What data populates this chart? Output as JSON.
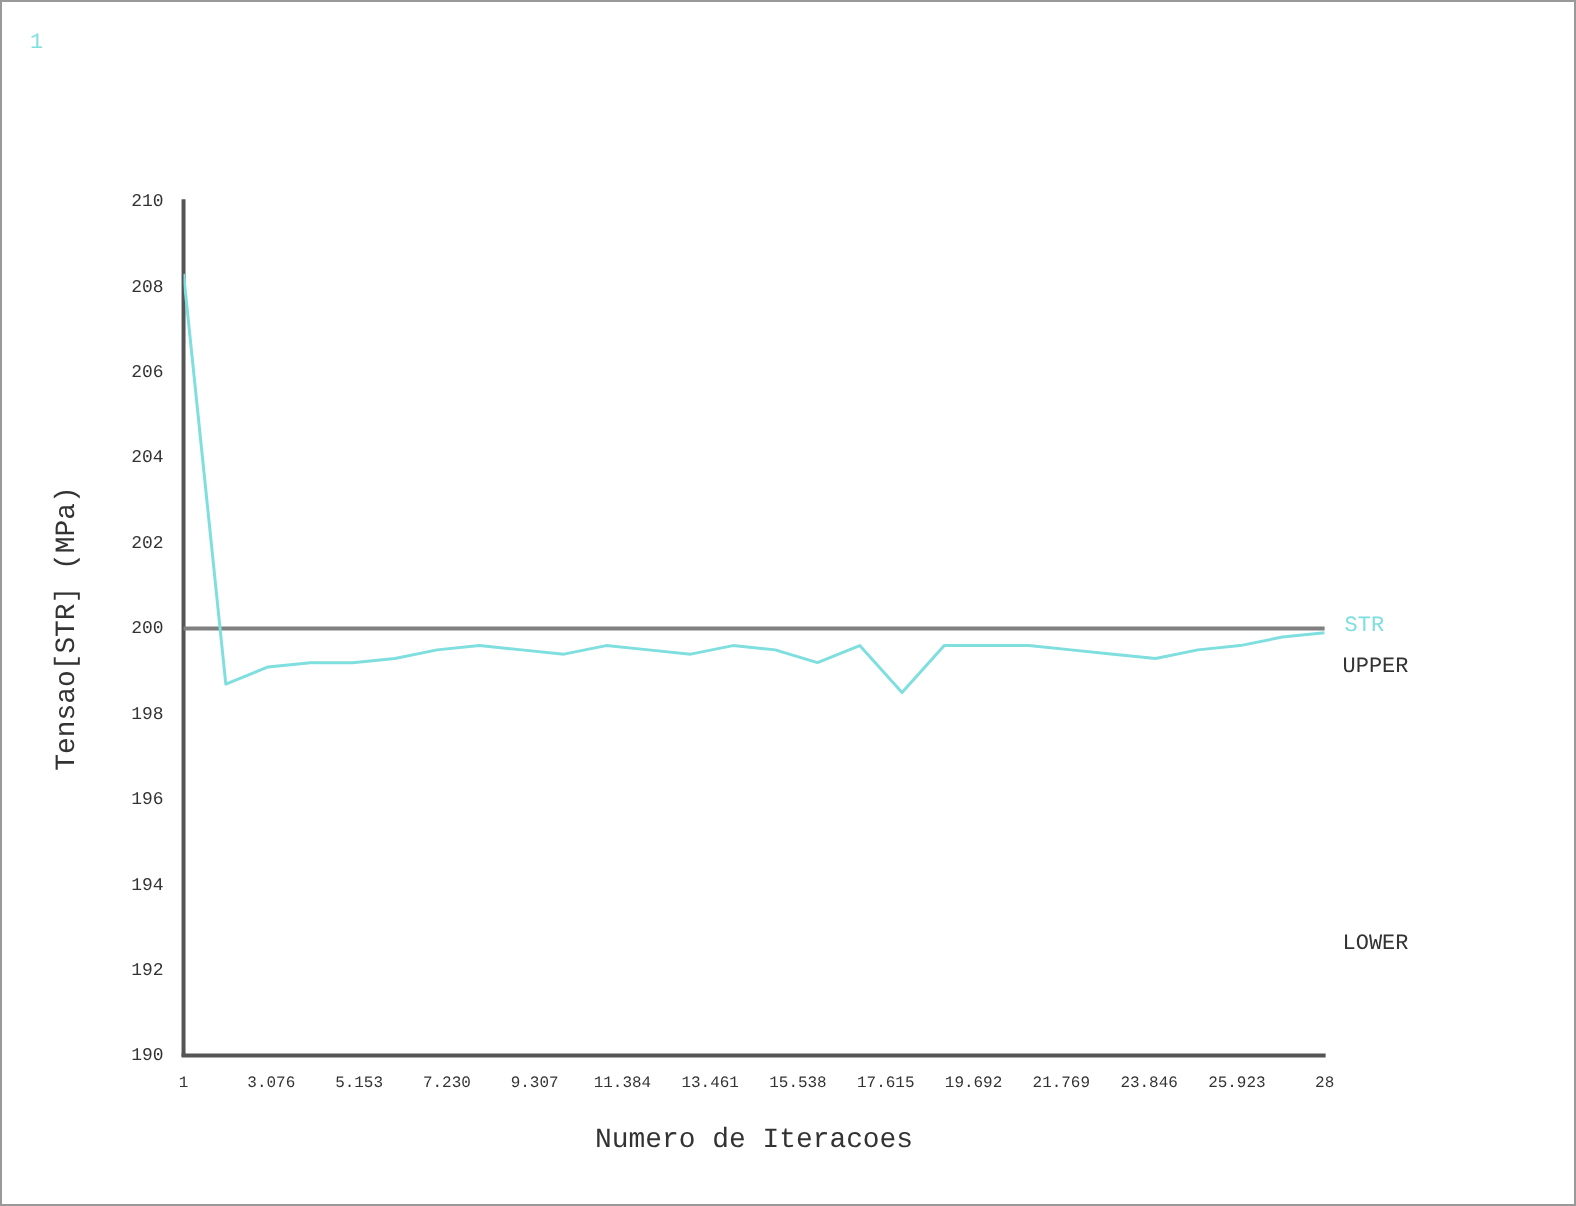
{
  "chart_data": {
    "type": "line",
    "xlabel": "Numero de Iteracoes",
    "ylabel": "Tensao[STR] (MPa)",
    "xlim": [
      1,
      28
    ],
    "xticks": [
      1,
      3.076,
      5.153,
      {
        "value": 7.23,
        "label": "7.230"
      },
      9.307,
      11.384,
      13.461,
      15.538,
      17.615,
      19.692,
      21.769,
      23.846,
      25.923,
      28
    ],
    "ylim": [
      190,
      210
    ],
    "yticks": [
      190,
      192,
      194,
      196,
      198,
      200,
      202,
      204,
      206,
      208,
      210
    ],
    "x": [
      1,
      2,
      3,
      4,
      5,
      6,
      7,
      8,
      9,
      10,
      11,
      12,
      13,
      14,
      15,
      16,
      17,
      18,
      19,
      20,
      21,
      22,
      23,
      24,
      25,
      26,
      27,
      28
    ],
    "series": [
      {
        "name": "STR",
        "color": "#7fdede",
        "values": [
          208.3,
          198.7,
          199.1,
          199.2,
          199.2,
          199.3,
          199.5,
          199.6,
          199.5,
          199.4,
          199.6,
          199.5,
          199.4,
          199.6,
          199.5,
          199.2,
          199.6,
          198.5,
          199.6,
          199.6,
          199.6,
          199.5,
          199.4,
          199.3,
          199.5,
          199.6,
          199.8,
          199.9
        ]
      }
    ],
    "ref_lines": [
      {
        "axis": "y",
        "value": 200,
        "color": "#808080"
      }
    ],
    "annotations": [
      "1",
      "UPPER",
      "LOWER"
    ],
    "grid": false,
    "legend": false,
    "marker": "none",
    "line_style": "solid"
  }
}
